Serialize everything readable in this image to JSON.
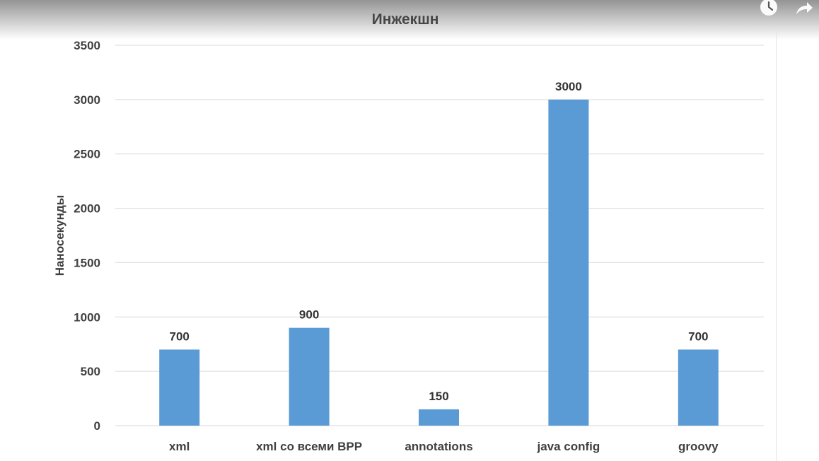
{
  "player": {
    "controls": [
      {
        "name": "clock-icon"
      },
      {
        "name": "share-icon"
      }
    ]
  },
  "chart_data": {
    "type": "bar",
    "title": "Инжекшн",
    "xlabel": "",
    "ylabel": "Наносекунды",
    "categories": [
      "xml",
      "xml со всеми BPP",
      "annotations",
      "java config",
      "groovy"
    ],
    "values": [
      700,
      900,
      150,
      3000,
      700
    ],
    "data_labels": [
      "700",
      "900",
      "150",
      "3000",
      "700"
    ],
    "ylim": [
      0,
      3500
    ],
    "yticks": [
      0,
      500,
      1000,
      1500,
      2000,
      2500,
      3000,
      3500
    ],
    "ytick_labels": [
      "0",
      "500",
      "1000",
      "1500",
      "2000",
      "2500",
      "3000",
      "3500"
    ],
    "grid": true,
    "legend": "none",
    "bar_color": "#5b9bd5",
    "grid_color": "#d9d9d9"
  }
}
